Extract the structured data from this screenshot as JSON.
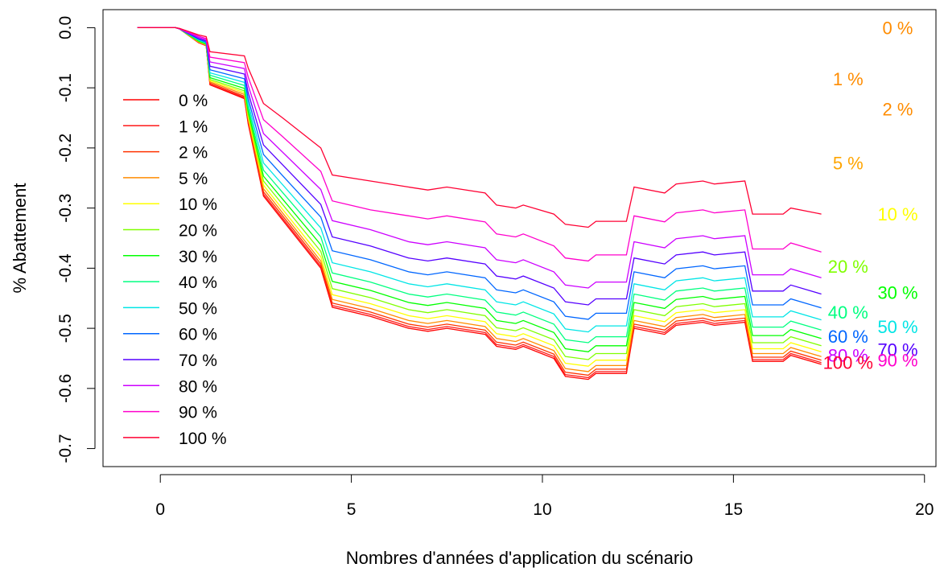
{
  "chart_data": {
    "type": "line",
    "title": "",
    "xlabel": "Nombres d'années d'application du scénario",
    "ylabel": "% Abattement",
    "xlim": [
      -1.5,
      20.3
    ],
    "ylim": [
      -0.73,
      0.03
    ],
    "x_ticks": [
      0,
      5,
      10,
      15,
      20
    ],
    "y_ticks": [
      0.0,
      -0.1,
      -0.2,
      -0.3,
      -0.4,
      -0.5,
      -0.6,
      -0.7
    ],
    "x_tick_labels": [
      "0",
      "5",
      "10",
      "15",
      "20"
    ],
    "y_tick_labels": [
      "0.0",
      "-0.1",
      "-0.2",
      "-0.3",
      "-0.4",
      "-0.5",
      "-0.6",
      "-0.7"
    ],
    "grid": false,
    "legend_position": "left",
    "x": [
      -0.6,
      0.4,
      0.5,
      1.0,
      1.2,
      1.3,
      2.2,
      2.3,
      2.7,
      3.2,
      4.2,
      4.5,
      5.5,
      6.5,
      7.0,
      7.5,
      8.5,
      8.8,
      9.3,
      9.5,
      10.3,
      10.6,
      11.2,
      11.4,
      12.2,
      12.4,
      13.2,
      13.5,
      14.2,
      14.5,
      15.3,
      15.5,
      16.3,
      16.5,
      17.3
    ],
    "series": [
      {
        "name": "0 %",
        "color": "#FF0000",
        "end_label": "0 %",
        "values": [
          0,
          0,
          -0.002,
          -0.025,
          -0.03,
          -0.095,
          -0.118,
          -0.16,
          -0.28,
          -0.32,
          -0.4,
          -0.465,
          -0.48,
          -0.5,
          -0.505,
          -0.5,
          -0.51,
          -0.53,
          -0.535,
          -0.53,
          -0.55,
          -0.58,
          -0.585,
          -0.575,
          -0.575,
          -0.5,
          -0.51,
          -0.495,
          -0.49,
          -0.495,
          -0.49,
          -0.555,
          -0.555,
          -0.545,
          -0.56
        ]
      },
      {
        "name": "1 %",
        "color": "#FF1A1A",
        "end_label": "",
        "values": [
          0,
          0,
          -0.002,
          -0.025,
          -0.03,
          -0.094,
          -0.116,
          -0.158,
          -0.277,
          -0.317,
          -0.397,
          -0.462,
          -0.477,
          -0.497,
          -0.502,
          -0.497,
          -0.507,
          -0.527,
          -0.532,
          -0.527,
          -0.547,
          -0.577,
          -0.582,
          -0.572,
          -0.572,
          -0.497,
          -0.507,
          -0.492,
          -0.487,
          -0.492,
          -0.487,
          -0.552,
          -0.552,
          -0.542,
          -0.557
        ]
      },
      {
        "name": "2 %",
        "color": "#FF3300",
        "end_label": "",
        "values": [
          0,
          0,
          -0.002,
          -0.024,
          -0.029,
          -0.092,
          -0.114,
          -0.155,
          -0.273,
          -0.313,
          -0.393,
          -0.458,
          -0.473,
          -0.493,
          -0.498,
          -0.493,
          -0.503,
          -0.523,
          -0.528,
          -0.523,
          -0.543,
          -0.573,
          -0.578,
          -0.568,
          -0.568,
          -0.493,
          -0.503,
          -0.488,
          -0.483,
          -0.488,
          -0.483,
          -0.548,
          -0.548,
          -0.538,
          -0.553
        ]
      },
      {
        "name": "5 %",
        "color": "#FF8C00",
        "end_label": "",
        "values": [
          0,
          0,
          -0.002,
          -0.024,
          -0.029,
          -0.09,
          -0.111,
          -0.152,
          -0.268,
          -0.308,
          -0.388,
          -0.452,
          -0.467,
          -0.487,
          -0.492,
          -0.487,
          -0.497,
          -0.517,
          -0.522,
          -0.517,
          -0.537,
          -0.567,
          -0.572,
          -0.562,
          -0.562,
          -0.487,
          -0.497,
          -0.482,
          -0.477,
          -0.482,
          -0.477,
          -0.542,
          -0.542,
          -0.532,
          -0.547
        ]
      },
      {
        "name": "10 %",
        "color": "#FFFF00",
        "end_label": "",
        "values": [
          0,
          0,
          -0.002,
          -0.023,
          -0.028,
          -0.088,
          -0.108,
          -0.148,
          -0.262,
          -0.302,
          -0.381,
          -0.444,
          -0.459,
          -0.479,
          -0.484,
          -0.479,
          -0.489,
          -0.509,
          -0.514,
          -0.509,
          -0.529,
          -0.558,
          -0.563,
          -0.553,
          -0.553,
          -0.479,
          -0.489,
          -0.474,
          -0.469,
          -0.474,
          -0.469,
          -0.534,
          -0.534,
          -0.524,
          -0.539
        ]
      },
      {
        "name": "20 %",
        "color": "#80FF00",
        "end_label": "",
        "values": [
          0,
          0,
          -0.002,
          -0.023,
          -0.028,
          -0.086,
          -0.105,
          -0.144,
          -0.255,
          -0.294,
          -0.372,
          -0.434,
          -0.449,
          -0.469,
          -0.474,
          -0.469,
          -0.479,
          -0.499,
          -0.504,
          -0.499,
          -0.519,
          -0.547,
          -0.552,
          -0.542,
          -0.542,
          -0.469,
          -0.479,
          -0.464,
          -0.459,
          -0.464,
          -0.459,
          -0.524,
          -0.524,
          -0.514,
          -0.529
        ]
      },
      {
        "name": "30 %",
        "color": "#00FF00",
        "end_label": "",
        "values": [
          0,
          0,
          -0.002,
          -0.022,
          -0.027,
          -0.083,
          -0.101,
          -0.139,
          -0.247,
          -0.285,
          -0.361,
          -0.422,
          -0.437,
          -0.457,
          -0.462,
          -0.457,
          -0.467,
          -0.487,
          -0.492,
          -0.487,
          -0.507,
          -0.534,
          -0.539,
          -0.529,
          -0.529,
          -0.457,
          -0.467,
          -0.452,
          -0.447,
          -0.452,
          -0.447,
          -0.512,
          -0.512,
          -0.502,
          -0.517
        ]
      },
      {
        "name": "40 %",
        "color": "#00FF80",
        "end_label": "",
        "values": [
          0,
          0,
          -0.002,
          -0.021,
          -0.026,
          -0.079,
          -0.096,
          -0.133,
          -0.237,
          -0.274,
          -0.348,
          -0.408,
          -0.423,
          -0.443,
          -0.448,
          -0.443,
          -0.453,
          -0.473,
          -0.478,
          -0.473,
          -0.493,
          -0.519,
          -0.524,
          -0.514,
          -0.514,
          -0.443,
          -0.453,
          -0.438,
          -0.433,
          -0.438,
          -0.433,
          -0.498,
          -0.498,
          -0.488,
          -0.503
        ]
      },
      {
        "name": "50 %",
        "color": "#00E5E5",
        "end_label": "",
        "values": [
          0,
          0,
          -0.002,
          -0.02,
          -0.025,
          -0.075,
          -0.091,
          -0.126,
          -0.225,
          -0.261,
          -0.333,
          -0.391,
          -0.406,
          -0.426,
          -0.431,
          -0.426,
          -0.436,
          -0.456,
          -0.461,
          -0.456,
          -0.476,
          -0.501,
          -0.506,
          -0.496,
          -0.496,
          -0.426,
          -0.436,
          -0.421,
          -0.416,
          -0.421,
          -0.416,
          -0.481,
          -0.481,
          -0.471,
          -0.486
        ]
      },
      {
        "name": "60 %",
        "color": "#0066FF",
        "end_label": "",
        "values": [
          0,
          0,
          -0.002,
          -0.019,
          -0.024,
          -0.07,
          -0.085,
          -0.118,
          -0.211,
          -0.246,
          -0.315,
          -0.371,
          -0.386,
          -0.406,
          -0.411,
          -0.406,
          -0.416,
          -0.436,
          -0.441,
          -0.436,
          -0.456,
          -0.48,
          -0.485,
          -0.475,
          -0.475,
          -0.406,
          -0.416,
          -0.401,
          -0.396,
          -0.401,
          -0.396,
          -0.461,
          -0.461,
          -0.451,
          -0.466
        ]
      },
      {
        "name": "70 %",
        "color": "#5500FF",
        "end_label": "",
        "values": [
          0,
          0,
          -0.002,
          -0.018,
          -0.022,
          -0.064,
          -0.077,
          -0.108,
          -0.195,
          -0.228,
          -0.294,
          -0.348,
          -0.363,
          -0.383,
          -0.388,
          -0.383,
          -0.393,
          -0.413,
          -0.418,
          -0.413,
          -0.433,
          -0.456,
          -0.461,
          -0.451,
          -0.451,
          -0.383,
          -0.393,
          -0.378,
          -0.373,
          -0.378,
          -0.373,
          -0.438,
          -0.438,
          -0.428,
          -0.443
        ]
      },
      {
        "name": "80 %",
        "color": "#CC00FF",
        "end_label": "",
        "values": [
          0,
          0,
          -0.002,
          -0.016,
          -0.02,
          -0.057,
          -0.068,
          -0.096,
          -0.176,
          -0.207,
          -0.269,
          -0.321,
          -0.336,
          -0.356,
          -0.361,
          -0.356,
          -0.366,
          -0.386,
          -0.391,
          -0.386,
          -0.406,
          -0.428,
          -0.433,
          -0.423,
          -0.423,
          -0.356,
          -0.366,
          -0.351,
          -0.346,
          -0.351,
          -0.346,
          -0.411,
          -0.411,
          -0.401,
          -0.416
        ]
      },
      {
        "name": "90 %",
        "color": "#FF00CC",
        "end_label": "",
        "values": [
          0,
          0,
          -0.002,
          -0.014,
          -0.018,
          -0.049,
          -0.058,
          -0.082,
          -0.153,
          -0.181,
          -0.239,
          -0.288,
          -0.303,
          -0.313,
          -0.318,
          -0.313,
          -0.323,
          -0.343,
          -0.348,
          -0.343,
          -0.363,
          -0.383,
          -0.388,
          -0.378,
          -0.378,
          -0.313,
          -0.323,
          -0.308,
          -0.303,
          -0.308,
          -0.303,
          -0.368,
          -0.368,
          -0.358,
          -0.373
        ]
      },
      {
        "name": "100 %",
        "color": "#FF0033",
        "end_label": "",
        "values": [
          0,
          0,
          -0.001,
          -0.012,
          -0.015,
          -0.04,
          -0.047,
          -0.067,
          -0.126,
          -0.15,
          -0.2,
          -0.245,
          -0.255,
          -0.265,
          -0.27,
          -0.265,
          -0.275,
          -0.295,
          -0.3,
          -0.295,
          -0.31,
          -0.327,
          -0.332,
          -0.322,
          -0.322,
          -0.265,
          -0.275,
          -0.26,
          -0.255,
          -0.26,
          -0.255,
          -0.31,
          -0.31,
          -0.3,
          -0.31
        ]
      }
    ],
    "end_labels": [
      {
        "text": "0 %",
        "color": "#FF8C00",
        "x": 19.3,
        "y": 0.0
      },
      {
        "text": "1 %",
        "color": "#FF8C00",
        "x": 18.0,
        "y": -0.085
      },
      {
        "text": "2 %",
        "color": "#FF8C00",
        "x": 19.3,
        "y": -0.135
      },
      {
        "text": "5 %",
        "color": "#FFA500",
        "x": 18.0,
        "y": -0.225
      },
      {
        "text": "10 %",
        "color": "#FFFF00",
        "x": 19.3,
        "y": -0.31
      },
      {
        "text": "20 %",
        "color": "#80FF00",
        "x": 18.0,
        "y": -0.397
      },
      {
        "text": "30 %",
        "color": "#00FF00",
        "x": 19.3,
        "y": -0.44
      },
      {
        "text": "40 %",
        "color": "#00FF80",
        "x": 18.0,
        "y": -0.473
      },
      {
        "text": "50 %",
        "color": "#00E5E5",
        "x": 19.3,
        "y": -0.497
      },
      {
        "text": "60 %",
        "color": "#0066FF",
        "x": 18.0,
        "y": -0.513
      },
      {
        "text": "70 %",
        "color": "#5500FF",
        "x": 19.3,
        "y": -0.535
      },
      {
        "text": "80 %",
        "color": "#CC00FF",
        "x": 18.0,
        "y": -0.545
      },
      {
        "text": "90 %",
        "color": "#FF00CC",
        "x": 19.3,
        "y": -0.553
      },
      {
        "text": "100 %",
        "color": "#FF0033",
        "x": 18.0,
        "y": -0.557
      }
    ]
  }
}
